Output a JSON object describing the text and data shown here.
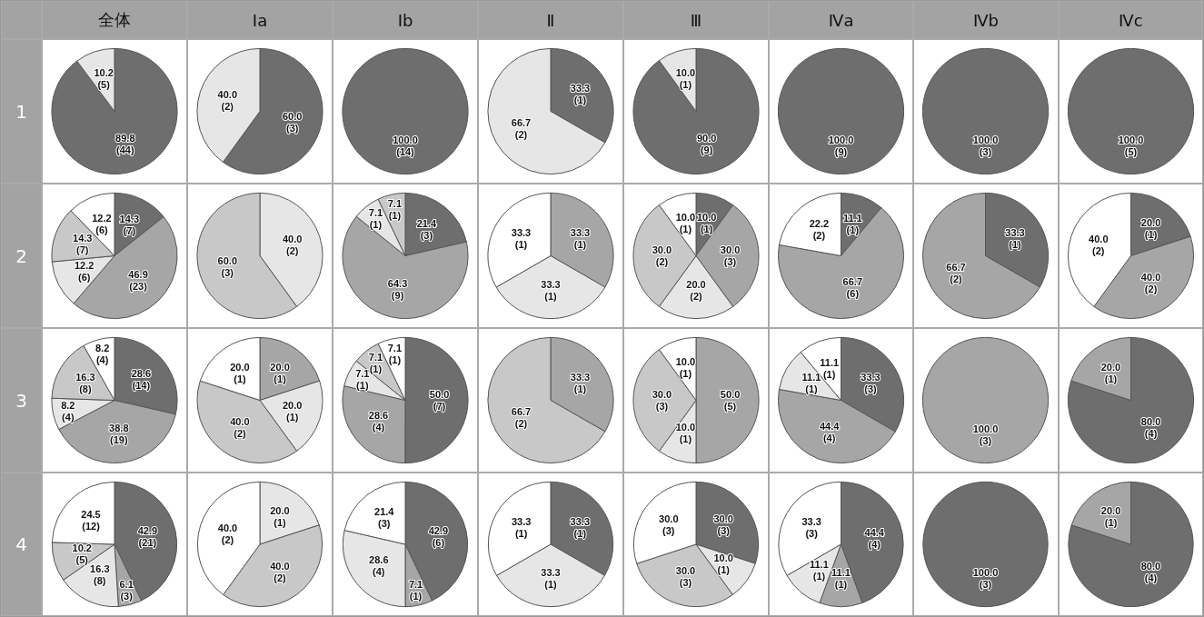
{
  "chart_data": [
    {
      "type": "other",
      "annotations": [
        "全体",
        "Ⅰa",
        "Ⅰb",
        "Ⅱ",
        "Ⅲ",
        "Ⅳa",
        "Ⅳb",
        "Ⅳc"
      ]
    },
    {
      "type": "other",
      "title": "1"
    },
    {
      "type": "other",
      "title": "2"
    },
    {
      "type": "other",
      "title": "3"
    },
    {
      "type": "other",
      "title": "4"
    },
    {
      "type": "pie",
      "categories": [
        null,
        null
      ],
      "values": [
        89.8,
        10.2
      ],
      "colors": [
        "#6e6e6e",
        "#e6e6e6"
      ],
      "value_labels": [
        "89.8\n(44)",
        "10.2\n(5)"
      ]
    },
    {
      "type": "pie",
      "categories": [
        null,
        null
      ],
      "values": [
        60.0,
        40.0
      ],
      "colors": [
        "#6e6e6e",
        "#e6e6e6"
      ],
      "value_labels": [
        "60.0\n(3)",
        "40.0\n(2)"
      ]
    },
    {
      "type": "pie",
      "categories": [
        null
      ],
      "values": [
        100.0
      ],
      "colors": [
        "#6e6e6e"
      ],
      "value_labels": [
        "100.0\n(14)"
      ]
    },
    {
      "type": "pie",
      "categories": [
        null,
        null
      ],
      "values": [
        33.3,
        66.7
      ],
      "colors": [
        "#6e6e6e",
        "#e6e6e6"
      ],
      "value_labels": [
        "33.3\n(1)",
        "66.7\n(2)"
      ]
    },
    {
      "type": "pie",
      "categories": [
        null,
        null
      ],
      "values": [
        90.0,
        10.0
      ],
      "colors": [
        "#6e6e6e",
        "#e6e6e6"
      ],
      "value_labels": [
        "90.0\n(9)",
        "10.0\n(1)"
      ]
    },
    {
      "type": "pie",
      "categories": [
        null
      ],
      "values": [
        100.0
      ],
      "colors": [
        "#6e6e6e"
      ],
      "value_labels": [
        "100.0\n(9)"
      ]
    },
    {
      "type": "pie",
      "categories": [
        null
      ],
      "values": [
        100.0
      ],
      "colors": [
        "#6e6e6e"
      ],
      "value_labels": [
        "100.0\n(3)"
      ]
    },
    {
      "type": "pie",
      "categories": [
        null
      ],
      "values": [
        100.0
      ],
      "colors": [
        "#6e6e6e"
      ],
      "value_labels": [
        "100.0\n(5)"
      ]
    },
    {
      "type": "pie",
      "categories": [
        null,
        null,
        null,
        null,
        null
      ],
      "values": [
        14.3,
        46.9,
        12.2,
        14.3,
        12.2
      ],
      "colors": [
        "#6e6e6e",
        "#a6a6a6",
        "#e6e6e6",
        "#c8c8c8",
        "#ffffff"
      ],
      "value_labels": [
        "14.3\n(7)",
        "46.9\n(23)",
        "12.2\n(6)",
        "14.3\n(7)",
        "12.2\n(6)"
      ]
    },
    {
      "type": "pie",
      "categories": [
        null,
        null
      ],
      "values": [
        40.0,
        60.0
      ],
      "colors": [
        "#e6e6e6",
        "#c8c8c8"
      ],
      "value_labels": [
        "40.0\n(2)",
        "60.0\n(3)"
      ]
    },
    {
      "type": "pie",
      "categories": [
        null,
        null,
        null,
        null
      ],
      "values": [
        21.4,
        64.3,
        7.1,
        7.1
      ],
      "colors": [
        "#6e6e6e",
        "#a6a6a6",
        "#e6e6e6",
        "#c8c8c8"
      ],
      "value_labels": [
        "21.4\n(3)",
        "64.3\n(9)",
        "7.1\n(1)",
        "7.1\n(1)"
      ]
    },
    {
      "type": "pie",
      "categories": [
        null,
        null,
        null
      ],
      "values": [
        33.3,
        33.3,
        33.3
      ],
      "colors": [
        "#a6a6a6",
        "#e6e6e6",
        "#ffffff"
      ],
      "value_labels": [
        "33.3\n(1)",
        "33.3\n(1)",
        "33.3\n(1)"
      ]
    },
    {
      "type": "pie",
      "categories": [
        null,
        null,
        null,
        null,
        null
      ],
      "values": [
        10.0,
        30.0,
        20.0,
        30.0,
        10.0
      ],
      "colors": [
        "#6e6e6e",
        "#a6a6a6",
        "#e6e6e6",
        "#c8c8c8",
        "#ffffff"
      ],
      "value_labels": [
        "10.0\n(1)",
        "30.0\n(3)",
        "20.0\n(2)",
        "30.0\n(2)",
        "10.0\n(1)"
      ]
    },
    {
      "type": "pie",
      "categories": [
        null,
        null,
        null
      ],
      "values": [
        11.1,
        66.7,
        22.2
      ],
      "colors": [
        "#6e6e6e",
        "#a6a6a6",
        "#ffffff"
      ],
      "value_labels": [
        "11.1\n(1)",
        "66.7\n(6)",
        "22.2\n(2)"
      ]
    },
    {
      "type": "pie",
      "categories": [
        null,
        null
      ],
      "values": [
        33.3,
        66.7
      ],
      "colors": [
        "#6e6e6e",
        "#a6a6a6"
      ],
      "value_labels": [
        "33.3\n(1)",
        "66.7\n(2)"
      ]
    },
    {
      "type": "pie",
      "categories": [
        null,
        null,
        null
      ],
      "values": [
        20.0,
        40.0,
        40.0
      ],
      "colors": [
        "#6e6e6e",
        "#a6a6a6",
        "#ffffff"
      ],
      "value_labels": [
        "20.0\n(1)",
        "40.0\n(2)",
        "40.0\n(2)"
      ]
    },
    {
      "type": "pie",
      "categories": [
        null,
        null,
        null,
        null,
        null
      ],
      "values": [
        28.6,
        38.8,
        8.2,
        16.3,
        8.2
      ],
      "colors": [
        "#6e6e6e",
        "#a6a6a6",
        "#e6e6e6",
        "#c8c8c8",
        "#ffffff"
      ],
      "value_labels": [
        "28.6\n(14)",
        "38.8\n(19)",
        "8.2\n(4)",
        "16.3\n(8)",
        "8.2\n(4)"
      ]
    },
    {
      "type": "pie",
      "categories": [
        null,
        null,
        null,
        null
      ],
      "values": [
        20.0,
        20.0,
        40.0,
        20.0
      ],
      "colors": [
        "#a6a6a6",
        "#e6e6e6",
        "#c8c8c8",
        "#ffffff"
      ],
      "value_labels": [
        "20.0\n(1)",
        "20.0\n(1)",
        "40.0\n(2)",
        "20.0\n(1)"
      ]
    },
    {
      "type": "pie",
      "categories": [
        null,
        null,
        null,
        null,
        null
      ],
      "values": [
        50.0,
        28.6,
        7.1,
        7.1,
        7.1
      ],
      "colors": [
        "#6e6e6e",
        "#a6a6a6",
        "#e6e6e6",
        "#c8c8c8",
        "#ffffff"
      ],
      "value_labels": [
        "50.0\n(7)",
        "28.6\n(4)",
        "7.1\n(1)",
        "7.1\n(1)",
        "7.1\n(1)"
      ]
    },
    {
      "type": "pie",
      "categories": [
        null,
        null
      ],
      "values": [
        33.3,
        66.7
      ],
      "colors": [
        "#a6a6a6",
        "#c8c8c8"
      ],
      "value_labels": [
        "33.3\n(1)",
        "66.7\n(2)"
      ]
    },
    {
      "type": "pie",
      "categories": [
        null,
        null,
        null,
        null
      ],
      "values": [
        50.0,
        10.0,
        30.0,
        10.0
      ],
      "colors": [
        "#a6a6a6",
        "#e6e6e6",
        "#c8c8c8",
        "#ffffff"
      ],
      "value_labels": [
        "50.0\n(5)",
        "10.0\n(1)",
        "30.0\n(3)",
        "10.0\n(1)"
      ]
    },
    {
      "type": "pie",
      "categories": [
        null,
        null,
        null,
        null
      ],
      "values": [
        33.3,
        44.4,
        11.1,
        11.1
      ],
      "colors": [
        "#6e6e6e",
        "#a6a6a6",
        "#e6e6e6",
        "#ffffff"
      ],
      "value_labels": [
        "33.3\n(3)",
        "44.4\n(4)",
        "11.1\n(1)",
        "11.1\n(1)"
      ]
    },
    {
      "type": "pie",
      "categories": [
        null
      ],
      "values": [
        100.0
      ],
      "colors": [
        "#a6a6a6"
      ],
      "value_labels": [
        "100.0\n(3)"
      ]
    },
    {
      "type": "pie",
      "categories": [
        null,
        null
      ],
      "values": [
        80.0,
        20.0
      ],
      "colors": [
        "#6e6e6e",
        "#a6a6a6"
      ],
      "value_labels": [
        "80.0\n(4)",
        "20.0\n(1)"
      ]
    },
    {
      "type": "pie",
      "categories": [
        null,
        null,
        null,
        null,
        null
      ],
      "values": [
        42.9,
        6.1,
        16.3,
        10.2,
        24.5
      ],
      "colors": [
        "#6e6e6e",
        "#a6a6a6",
        "#e6e6e6",
        "#c8c8c8",
        "#ffffff"
      ],
      "value_labels": [
        "42.9\n(21)",
        "6.1\n(3)",
        "16.3\n(8)",
        "10.2\n(5)",
        "24.5\n(12)"
      ]
    },
    {
      "type": "pie",
      "categories": [
        null,
        null,
        null
      ],
      "values": [
        20.0,
        40.0,
        40.0
      ],
      "colors": [
        "#e6e6e6",
        "#c8c8c8",
        "#ffffff"
      ],
      "value_labels": [
        "20.0\n(1)",
        "40.0\n(2)",
        "40.0\n(2)"
      ]
    },
    {
      "type": "pie",
      "categories": [
        null,
        null,
        null,
        null
      ],
      "values": [
        42.9,
        7.1,
        28.6,
        21.4
      ],
      "colors": [
        "#6e6e6e",
        "#a6a6a6",
        "#e6e6e6",
        "#ffffff"
      ],
      "value_labels": [
        "42.9\n(6)",
        "7.1\n(1)",
        "28.6\n(4)",
        "21.4\n(3)"
      ]
    },
    {
      "type": "pie",
      "categories": [
        null,
        null,
        null
      ],
      "values": [
        33.3,
        33.3,
        33.3
      ],
      "colors": [
        "#6e6e6e",
        "#e6e6e6",
        "#ffffff"
      ],
      "value_labels": [
        "33.3\n(1)",
        "33.3\n(1)",
        "33.3\n(1)"
      ]
    },
    {
      "type": "pie",
      "categories": [
        null,
        null,
        null,
        null
      ],
      "values": [
        30.0,
        10.0,
        30.0,
        30.0
      ],
      "colors": [
        "#6e6e6e",
        "#e6e6e6",
        "#c8c8c8",
        "#ffffff"
      ],
      "value_labels": [
        "30.0\n(3)",
        "10.0\n(1)",
        "30.0\n(3)",
        "30.0\n(3)"
      ]
    },
    {
      "type": "pie",
      "categories": [
        null,
        null,
        null,
        null
      ],
      "values": [
        44.4,
        11.1,
        11.1,
        33.3
      ],
      "colors": [
        "#6e6e6e",
        "#a6a6a6",
        "#e6e6e6",
        "#ffffff"
      ],
      "value_labels": [
        "44.4\n(4)",
        "11.1\n(1)",
        "11.1\n(1)",
        "33.3\n(3)"
      ]
    },
    {
      "type": "pie",
      "categories": [
        null
      ],
      "values": [
        100.0
      ],
      "colors": [
        "#6e6e6e"
      ],
      "value_labels": [
        "100.0\n(3)"
      ]
    },
    {
      "type": "pie",
      "categories": [
        null,
        null
      ],
      "values": [
        80.0,
        20.0
      ],
      "colors": [
        "#6e6e6e",
        "#a6a6a6"
      ],
      "value_labels": [
        "80.0\n(4)",
        "20.0\n(1)"
      ]
    }
  ]
}
